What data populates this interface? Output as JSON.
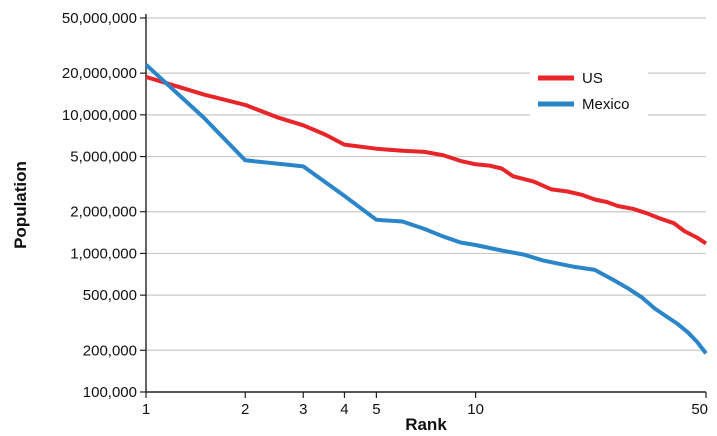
{
  "chart_data": {
    "type": "line",
    "xlabel": "Rank",
    "ylabel": "Population",
    "x_scale": "log",
    "y_scale": "log",
    "xlim": [
      1,
      50
    ],
    "ylim": [
      100000,
      50000000
    ],
    "x_ticks": [
      {
        "value": 1,
        "label": "1"
      },
      {
        "value": 2,
        "label": "2"
      },
      {
        "value": 3,
        "label": "3"
      },
      {
        "value": 4,
        "label": "4"
      },
      {
        "value": 5,
        "label": "5"
      },
      {
        "value": 10,
        "label": "10"
      },
      {
        "value": 50,
        "label": "50"
      }
    ],
    "y_ticks": [
      {
        "value": 100000,
        "label": "100,000"
      },
      {
        "value": 200000,
        "label": "200,000"
      },
      {
        "value": 500000,
        "label": "500,000"
      },
      {
        "value": 1000000,
        "label": "1,000,000"
      },
      {
        "value": 2000000,
        "label": "2,000,000"
      },
      {
        "value": 5000000,
        "label": "5,000,000"
      },
      {
        "value": 10000000,
        "label": "10,000,000"
      },
      {
        "value": 20000000,
        "label": "20,000,000"
      },
      {
        "value": 50000000,
        "label": "50,000,000"
      }
    ],
    "grid": "horizontal",
    "legend_position": "top-right",
    "series": [
      {
        "name": "US",
        "color": "#e8262a",
        "points": [
          [
            1,
            18800000
          ],
          [
            1.5,
            14000000
          ],
          [
            2,
            11800000
          ],
          [
            2.5,
            9600000
          ],
          [
            3,
            8400000
          ],
          [
            3.5,
            7200000
          ],
          [
            4,
            6100000
          ],
          [
            5,
            5700000
          ],
          [
            6,
            5500000
          ],
          [
            7,
            5400000
          ],
          [
            8,
            5100000
          ],
          [
            9,
            4650000
          ],
          [
            10,
            4400000
          ],
          [
            11,
            4300000
          ],
          [
            12,
            4100000
          ],
          [
            13,
            3600000
          ],
          [
            15,
            3300000
          ],
          [
            17,
            2900000
          ],
          [
            19,
            2800000
          ],
          [
            21,
            2650000
          ],
          [
            23,
            2450000
          ],
          [
            25,
            2350000
          ],
          [
            27,
            2200000
          ],
          [
            30,
            2100000
          ],
          [
            33,
            1950000
          ],
          [
            36,
            1800000
          ],
          [
            40,
            1650000
          ],
          [
            43,
            1450000
          ],
          [
            47,
            1300000
          ],
          [
            50,
            1180000
          ]
        ]
      },
      {
        "name": "Mexico",
        "color": "#2a86c9",
        "points": [
          [
            1,
            23000000
          ],
          [
            1.5,
            9500000
          ],
          [
            2,
            4700000
          ],
          [
            2.5,
            4450000
          ],
          [
            3,
            4250000
          ],
          [
            4,
            2600000
          ],
          [
            5,
            1750000
          ],
          [
            6,
            1700000
          ],
          [
            7,
            1500000
          ],
          [
            8,
            1320000
          ],
          [
            9,
            1200000
          ],
          [
            10,
            1150000
          ],
          [
            12,
            1050000
          ],
          [
            14,
            980000
          ],
          [
            16,
            890000
          ],
          [
            18,
            840000
          ],
          [
            20,
            800000
          ],
          [
            23,
            760000
          ],
          [
            26,
            650000
          ],
          [
            29,
            560000
          ],
          [
            32,
            480000
          ],
          [
            35,
            400000
          ],
          [
            38,
            350000
          ],
          [
            41,
            310000
          ],
          [
            44,
            270000
          ],
          [
            47,
            230000
          ],
          [
            50,
            190000
          ]
        ]
      }
    ]
  }
}
